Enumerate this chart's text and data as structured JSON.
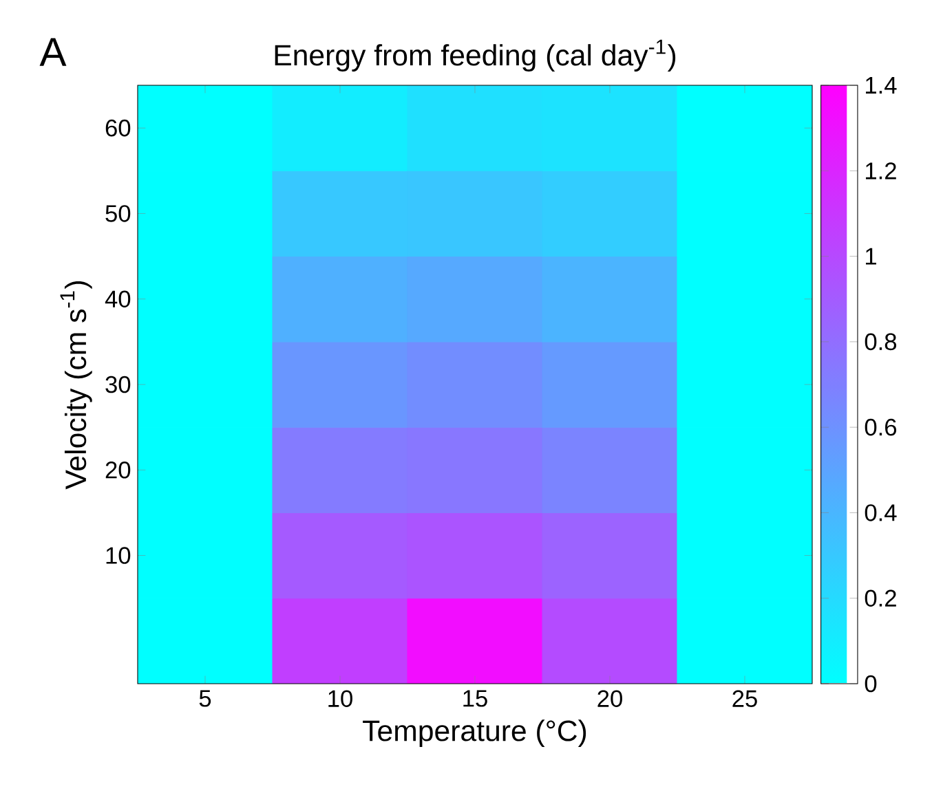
{
  "chart_data": {
    "type": "heatmap",
    "title": "Energy from feeding (cal day$^{-1}$)",
    "xlabel": "Temperature (°C)",
    "ylabel": "Velocity (cm s$^{-1}$)",
    "annotations": [
      "A"
    ],
    "categories": [
      "5",
      "10",
      "15",
      "20",
      "25"
    ],
    "y_categories": [
      "60",
      "50",
      "40",
      "30",
      "20",
      "10",
      null
    ],
    "cells": [
      [
        0,
        0.1,
        0.17,
        0.15,
        0
      ],
      [
        0,
        0.3,
        0.31,
        0.27,
        0
      ],
      [
        0,
        0.43,
        0.47,
        0.41,
        0
      ],
      [
        0,
        0.57,
        0.62,
        0.55,
        0
      ],
      [
        0,
        0.72,
        0.74,
        0.67,
        0
      ],
      [
        0,
        0.9,
        0.93,
        0.85,
        0
      ],
      [
        0,
        1.05,
        1.32,
        0.98,
        0
      ]
    ],
    "clim": [
      0,
      1.4
    ],
    "cticks": [
      0,
      0.2,
      0.4,
      0.6,
      0.8,
      1,
      1.2,
      1.4
    ]
  }
}
